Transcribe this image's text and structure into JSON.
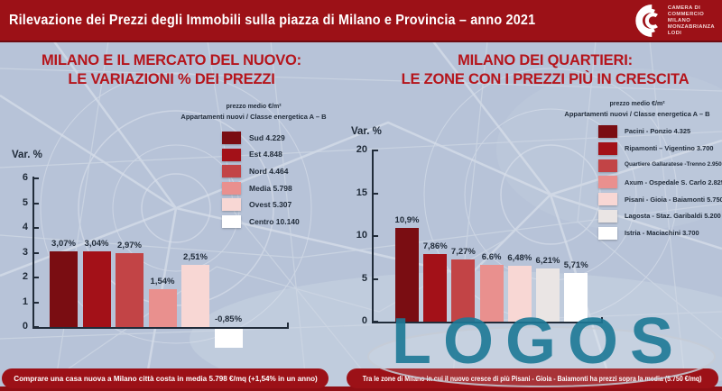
{
  "header": {
    "title": "Rilevazione dei Prezzi degli Immobili sulla piazza di Milano e Provincia – anno 2021",
    "logo_lines": [
      "CAMERA DI",
      "COMMERCIO",
      "MILANO",
      "MONZABRIANZA",
      "LODI"
    ]
  },
  "watermark": "LOGOS",
  "footnotes": {
    "left": "Comprare una casa nuova a Milano città costa in media 5.798 €/mq (+1,54% in un anno)",
    "right": "Tra le zone di Milano in cui il nuovo cresce di più Pisani - Gioia - Baiamonti ha prezzi sopra la media (5.750 €/mq)"
  },
  "colors": {
    "band_red": "#9c1117",
    "strip_red": "#8f0e14",
    "title_red": "#b5151c",
    "text_navy": "#212c3a",
    "watermark_teal": "#1d7996",
    "map_bg": "#b7c3d8"
  },
  "chart_data": [
    {
      "type": "bar",
      "title_lines": [
        "MILANO E IL MERCATO DEL NUOVO:",
        "LE VARIAZIONI % DEI PREZZI"
      ],
      "ylabel": "Var. %",
      "ylim": [
        0,
        6
      ],
      "yticks": [
        0,
        1,
        2,
        3,
        4,
        5,
        6
      ],
      "grid": false,
      "legend_position": "right-of-plot",
      "categories": [
        "Sud",
        "Est",
        "Nord",
        "Media",
        "Ovest",
        "Centro"
      ],
      "values": [
        3.07,
        3.04,
        2.97,
        1.54,
        2.51,
        -0.85
      ],
      "value_labels": [
        "3,07%",
        "3,04%",
        "2,97%",
        "1,54%",
        "2,51%",
        "-0,85%"
      ],
      "bar_colors": [
        "#7a0d12",
        "#a31118",
        "#c24446",
        "#e9908e",
        "#f8d7d4",
        "#ffffff"
      ],
      "legend_title_lines": [
        "prezzo medio €/m²",
        "Appartamenti nuovi / Classe energetica A – B"
      ],
      "legend": [
        {
          "label": "Sud",
          "price": "4.229"
        },
        {
          "label": "Est",
          "price": "4.848"
        },
        {
          "label": "Nord",
          "price": "4.464"
        },
        {
          "label": "Media",
          "price": "5.798"
        },
        {
          "label": "Ovest",
          "price": "5.307"
        },
        {
          "label": "Centro",
          "price": "10.140"
        }
      ]
    },
    {
      "type": "bar",
      "title_lines": [
        "MILANO DEI QUARTIERI:",
        "LE ZONE CON I PREZZI PIÙ IN CRESCITA"
      ],
      "ylabel": "Var. %",
      "ylim": [
        0,
        20
      ],
      "yticks": [
        0,
        5,
        10,
        15,
        20
      ],
      "grid": false,
      "legend_position": "right-of-plot",
      "categories": [
        "Pacini - Ponzio",
        "Ripamonti – Vigentino",
        "Quartiere Gallaratese -Trenno",
        "Axum - Ospedale S. Carlo",
        "Pisani - Gioia - Baiamonti",
        "Lagosta - Staz. Garibaldi",
        "Istria - Maciachini"
      ],
      "values": [
        10.9,
        7.86,
        7.27,
        6.6,
        6.48,
        6.21,
        5.71
      ],
      "value_labels": [
        "10,9%",
        "7,86%",
        "7,27%",
        "6.6%",
        "6,48%",
        "6,21%",
        "5,71%"
      ],
      "bar_colors": [
        "#7a0d12",
        "#a31118",
        "#c24446",
        "#e9908e",
        "#f8d7d4",
        "#eae5e4",
        "#ffffff"
      ],
      "legend_title_lines": [
        "prezzo medio €/m²",
        "Appartamenti nuovi / Classe energetica A – B"
      ],
      "legend": [
        {
          "label": "Pacini - Ponzio",
          "price": "4.325"
        },
        {
          "label": "Ripamonti – Vigentino",
          "price": "3.700"
        },
        {
          "label": "Quartiere Gallaratese -Trenno",
          "price": "2.950"
        },
        {
          "label": "Axum - Ospedale S. Carlo",
          "price": "2.825"
        },
        {
          "label": "Pisani - Gioia - Baiamonti",
          "price": "5.750"
        },
        {
          "label": "Lagosta - Staz. Garibaldi",
          "price": "5.200"
        },
        {
          "label": "Istria - Maciachini",
          "price": "3.700"
        }
      ]
    }
  ]
}
